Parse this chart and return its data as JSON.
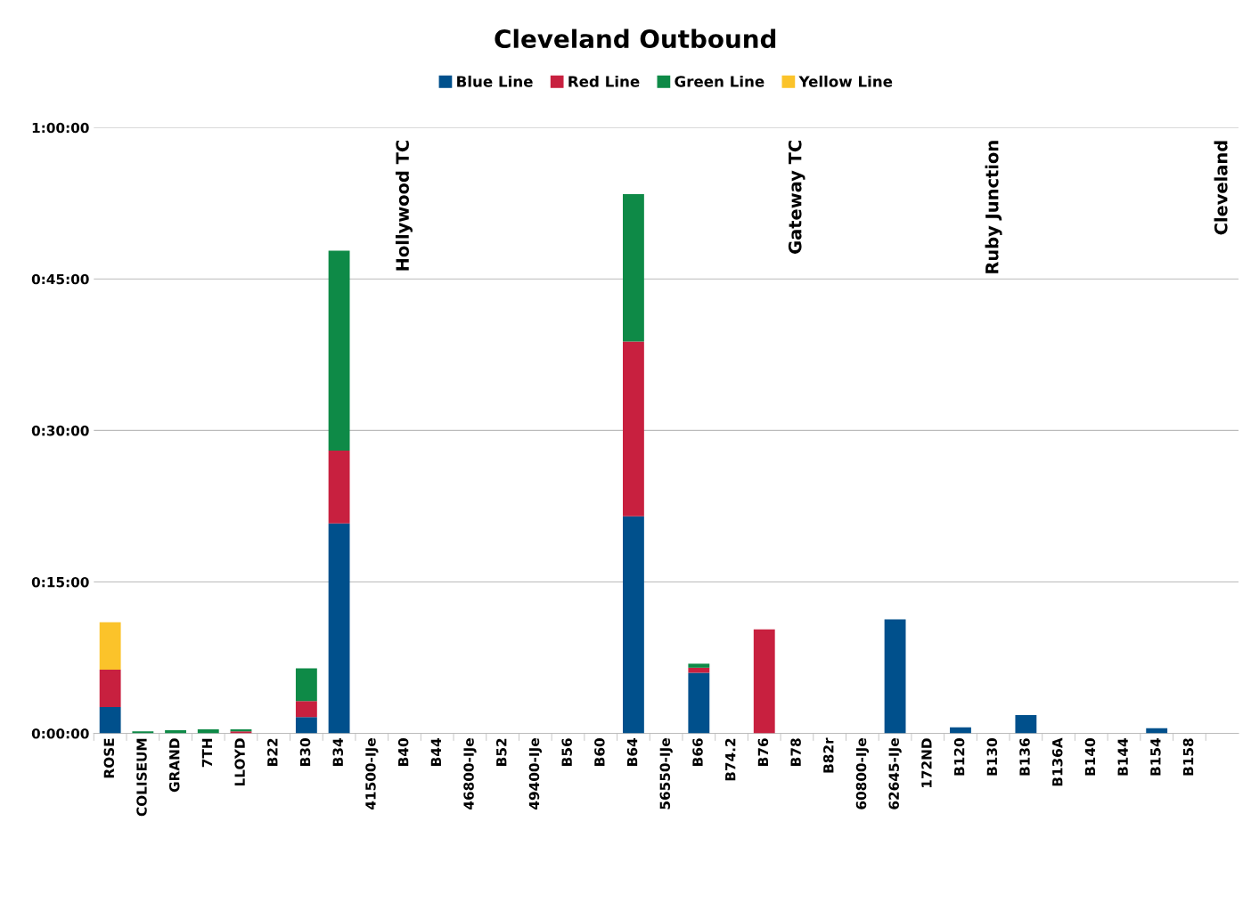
{
  "chart_data": {
    "type": "bar",
    "title": "Cleveland Outbound",
    "stacked": true,
    "legend": "top",
    "grid": "y",
    "categories": [
      "ROSE",
      "COLISEUM",
      "GRAND",
      "7TH",
      "LLOYD",
      "B22",
      "B30",
      "B34",
      "41500-IJe",
      "B40",
      "B44",
      "46800-IJe",
      "B52",
      "49400-IJe",
      "B56",
      "B60",
      "B64",
      "56550-IJe",
      "B66",
      "B74.2",
      "B76",
      "B78",
      "B82r",
      "60800-IJe",
      "62645-IJe",
      "172ND",
      "B120",
      "B130",
      "B136",
      "B136A",
      "B140",
      "B144",
      "B154",
      "B158",
      null
    ],
    "series": [
      {
        "name": "Blue Line",
        "color": "#00508c",
        "values": [
          2.6,
          null,
          null,
          null,
          null,
          null,
          1.6,
          20.8,
          null,
          null,
          null,
          null,
          null,
          null,
          null,
          null,
          21.5,
          null,
          6.0,
          null,
          null,
          null,
          null,
          null,
          11.3,
          null,
          0.6,
          null,
          1.8,
          null,
          null,
          null,
          0.5,
          null,
          null
        ]
      },
      {
        "name": "Red Line",
        "color": "#c8203f",
        "values": [
          3.7,
          null,
          null,
          null,
          0.2,
          null,
          1.6,
          7.2,
          null,
          null,
          null,
          null,
          null,
          null,
          null,
          null,
          17.3,
          null,
          0.5,
          null,
          10.3,
          null,
          null,
          null,
          null,
          null,
          null,
          null,
          null,
          null,
          null,
          null,
          null,
          null,
          null
        ]
      },
      {
        "name": "Green Line",
        "color": "#0e8a47",
        "values": [
          null,
          0.2,
          0.3,
          0.4,
          0.2,
          null,
          3.25,
          19.8,
          null,
          null,
          null,
          null,
          null,
          null,
          null,
          null,
          14.6,
          null,
          0.4,
          null,
          null,
          null,
          null,
          null,
          null,
          null,
          null,
          null,
          null,
          null,
          null,
          null,
          null,
          null,
          null
        ]
      },
      {
        "name": "Yellow Line",
        "color": "#fbc32a",
        "values": [
          4.7,
          null,
          null,
          null,
          null,
          null,
          null,
          null,
          null,
          null,
          null,
          null,
          null,
          null,
          null,
          null,
          null,
          null,
          null,
          null,
          null,
          null,
          null,
          null,
          null,
          null,
          null,
          null,
          null,
          null,
          null,
          null,
          null,
          null,
          null
        ]
      }
    ],
    "ylim": [
      0,
      60
    ],
    "yticks": [
      {
        "value": 0,
        "label": "0:00:00"
      },
      {
        "value": 15,
        "label": "0:15:00"
      },
      {
        "value": 30,
        "label": "0:30:00"
      },
      {
        "value": 45,
        "label": "0:45:00"
      },
      {
        "value": 60,
        "label": "1:00:00"
      }
    ],
    "annotations": [
      "Hollywood TC",
      "Gateway TC",
      "Ruby Junction",
      "Cleveland"
    ]
  }
}
